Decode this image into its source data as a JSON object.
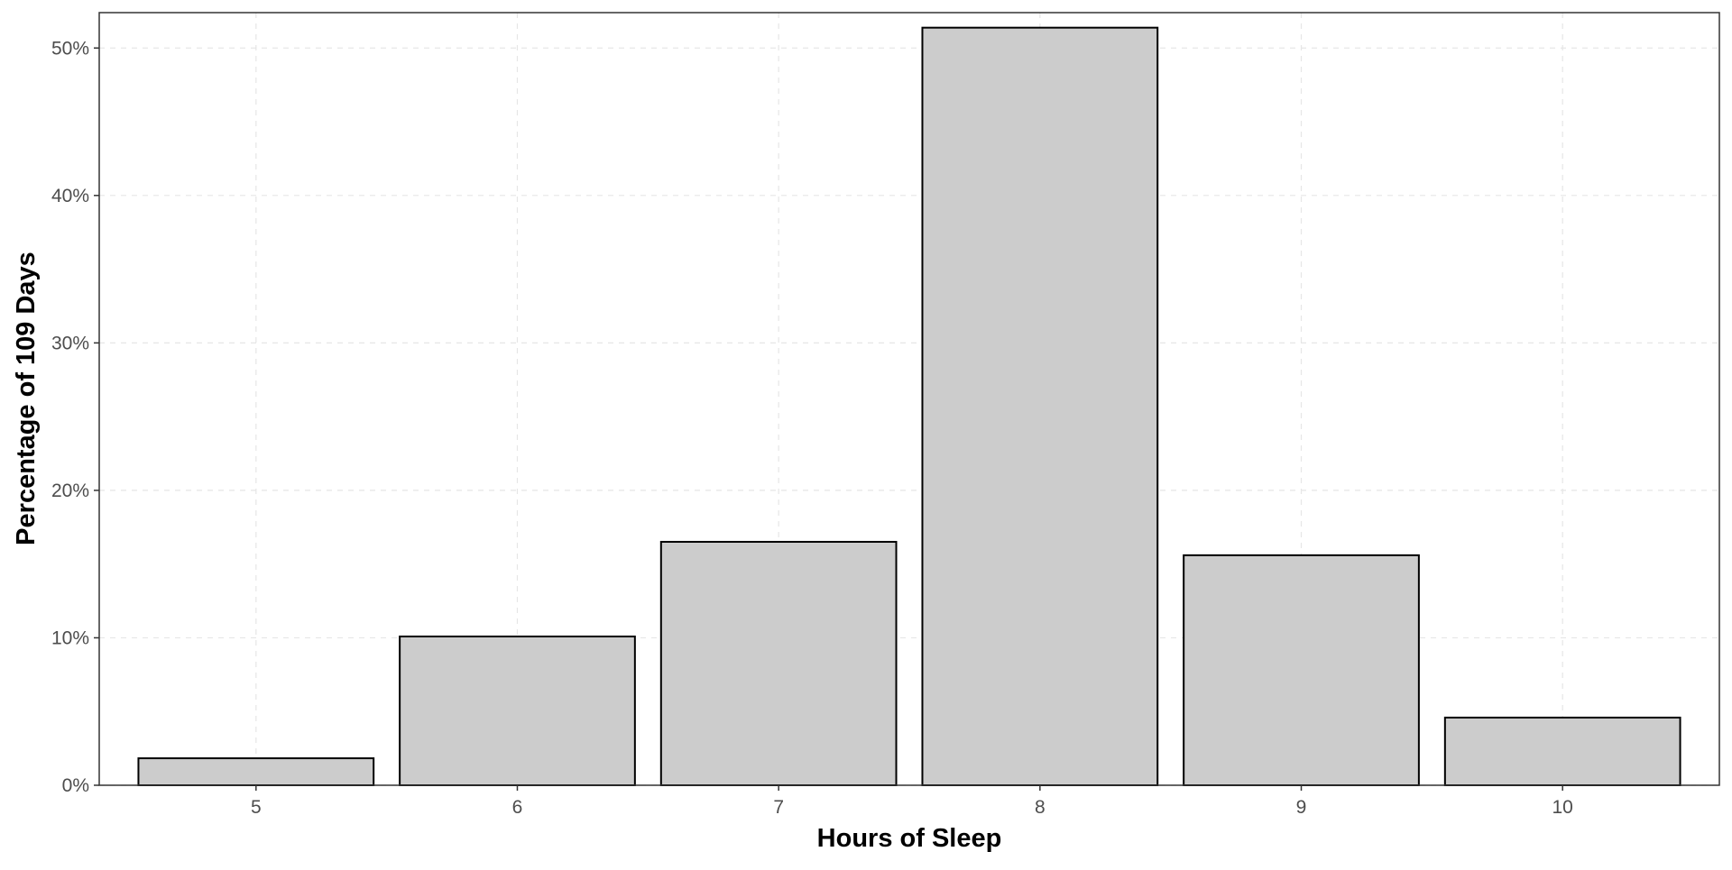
{
  "chart_data": {
    "type": "bar",
    "title": "",
    "xlabel": "Hours of Sleep",
    "ylabel": "Percentage of 109 Days",
    "categories": [
      "5",
      "6",
      "7",
      "8",
      "9",
      "10"
    ],
    "values": [
      1.83,
      10.09,
      16.51,
      51.38,
      15.6,
      4.59
    ],
    "ylim": [
      0,
      52.4
    ],
    "yticks": [
      0,
      10,
      20,
      30,
      40,
      50
    ],
    "ytick_labels": [
      "0%",
      "10%",
      "20%",
      "30%",
      "40%",
      "50%"
    ],
    "grid": true,
    "legend": "none"
  },
  "colors": {
    "bar_fill": "#cccccc",
    "bar_stroke": "#000000",
    "grid": "#e6e6e6",
    "panel_border": "#333333",
    "tick_text": "#4d4d4d"
  }
}
